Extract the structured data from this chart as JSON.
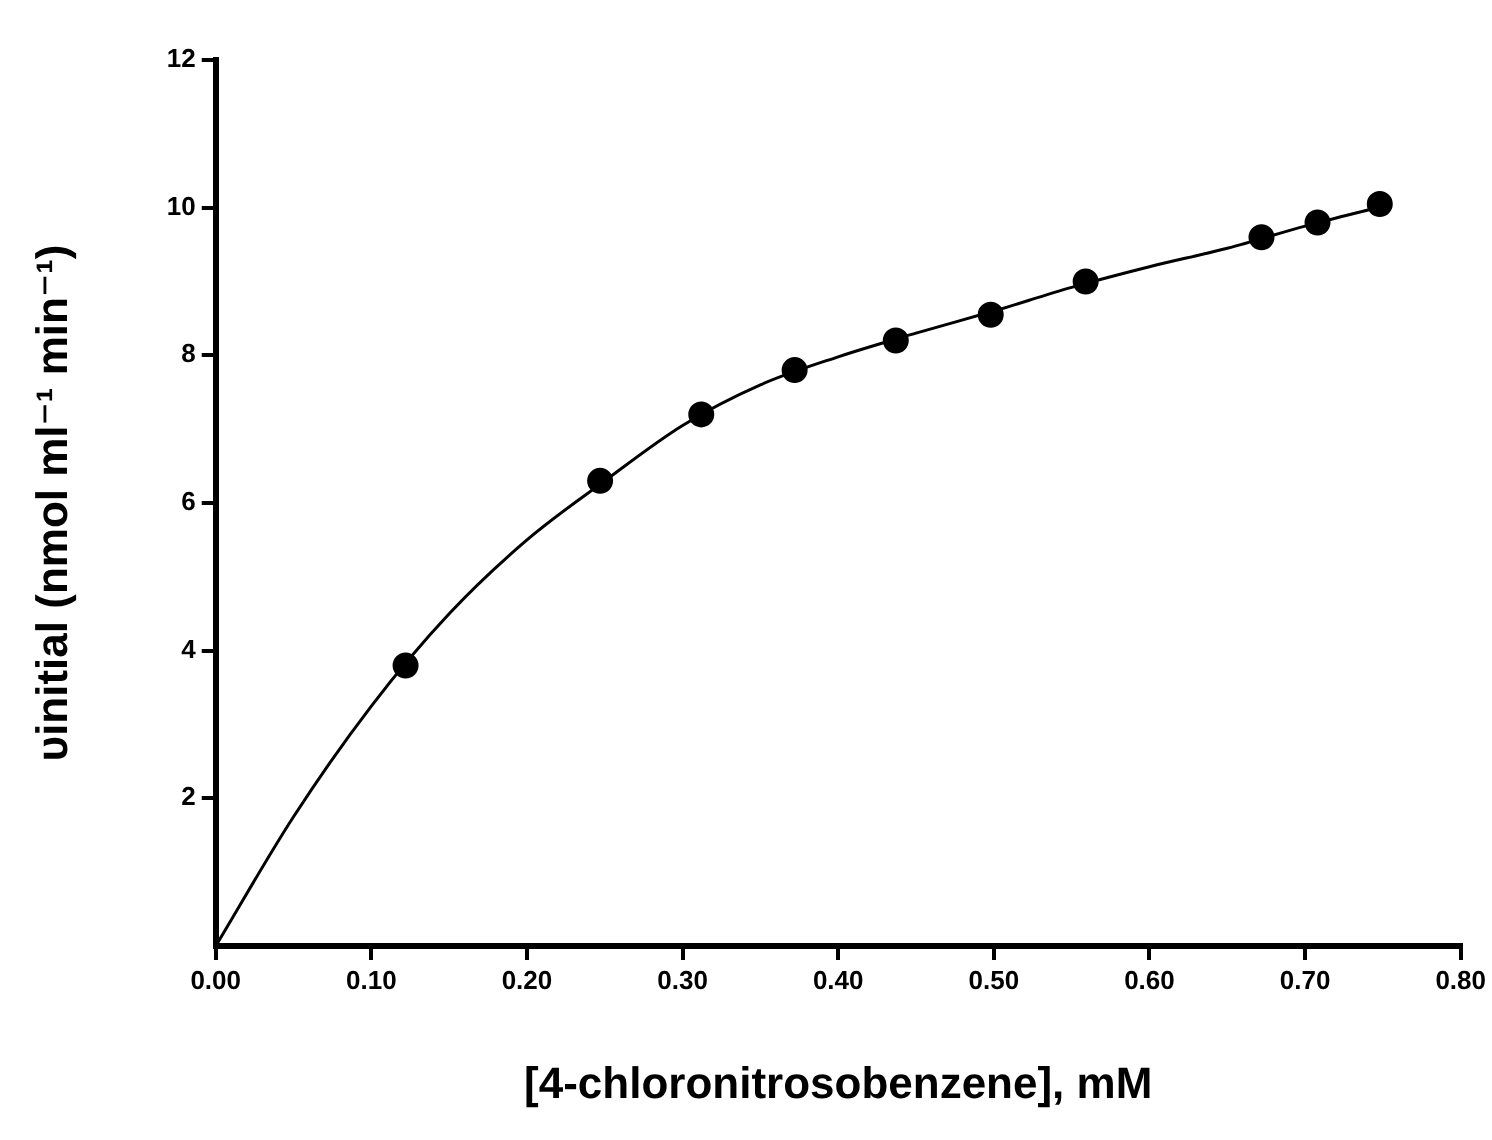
{
  "chart_data": {
    "type": "scatter",
    "xlabel": "[4-chloronitrosobenzene], mM",
    "ylabel": "υinitial (nmol ml⁻¹ min⁻¹)",
    "xlim": [
      0,
      0.8
    ],
    "ylim": [
      0,
      12
    ],
    "xticks": [
      {
        "value": 0,
        "label": "0.00"
      },
      {
        "value": 0.1,
        "label": "0.10"
      },
      {
        "value": 0.2,
        "label": "0.20"
      },
      {
        "value": 0.3,
        "label": "0.30"
      },
      {
        "value": 0.4,
        "label": "0.40"
      },
      {
        "value": 0.5,
        "label": "0.50"
      },
      {
        "value": 0.6,
        "label": "0.60"
      },
      {
        "value": 0.7,
        "label": "0.70"
      },
      {
        "value": 0.8,
        "label": "0.80"
      }
    ],
    "yticks": [
      2,
      4,
      6,
      8,
      10,
      12
    ],
    "grid": false,
    "legend": false,
    "series": [
      {
        "color": "#000000",
        "marker": "circle",
        "x": [
          0.122,
          0.247,
          0.312,
          0.372,
          0.437,
          0.498,
          0.559,
          0.672,
          0.708,
          0.748
        ],
        "values": [
          3.8,
          6.3,
          7.2,
          7.8,
          8.2,
          8.55,
          9.0,
          9.6,
          9.8,
          10.05
        ]
      },
      {
        "type": "line",
        "color": "#000000",
        "marker": "none",
        "line_style": "solid",
        "x": [
          0,
          0.05,
          0.1,
          0.15,
          0.2,
          0.25,
          0.3,
          0.35,
          0.4,
          0.45,
          0.5,
          0.55,
          0.6,
          0.65,
          0.7,
          0.75
        ],
        "values": [
          0,
          1.75,
          3.25,
          4.5,
          5.5,
          6.3,
          7.05,
          7.6,
          7.98,
          8.3,
          8.6,
          8.92,
          9.2,
          9.45,
          9.75,
          10.02
        ]
      }
    ]
  }
}
